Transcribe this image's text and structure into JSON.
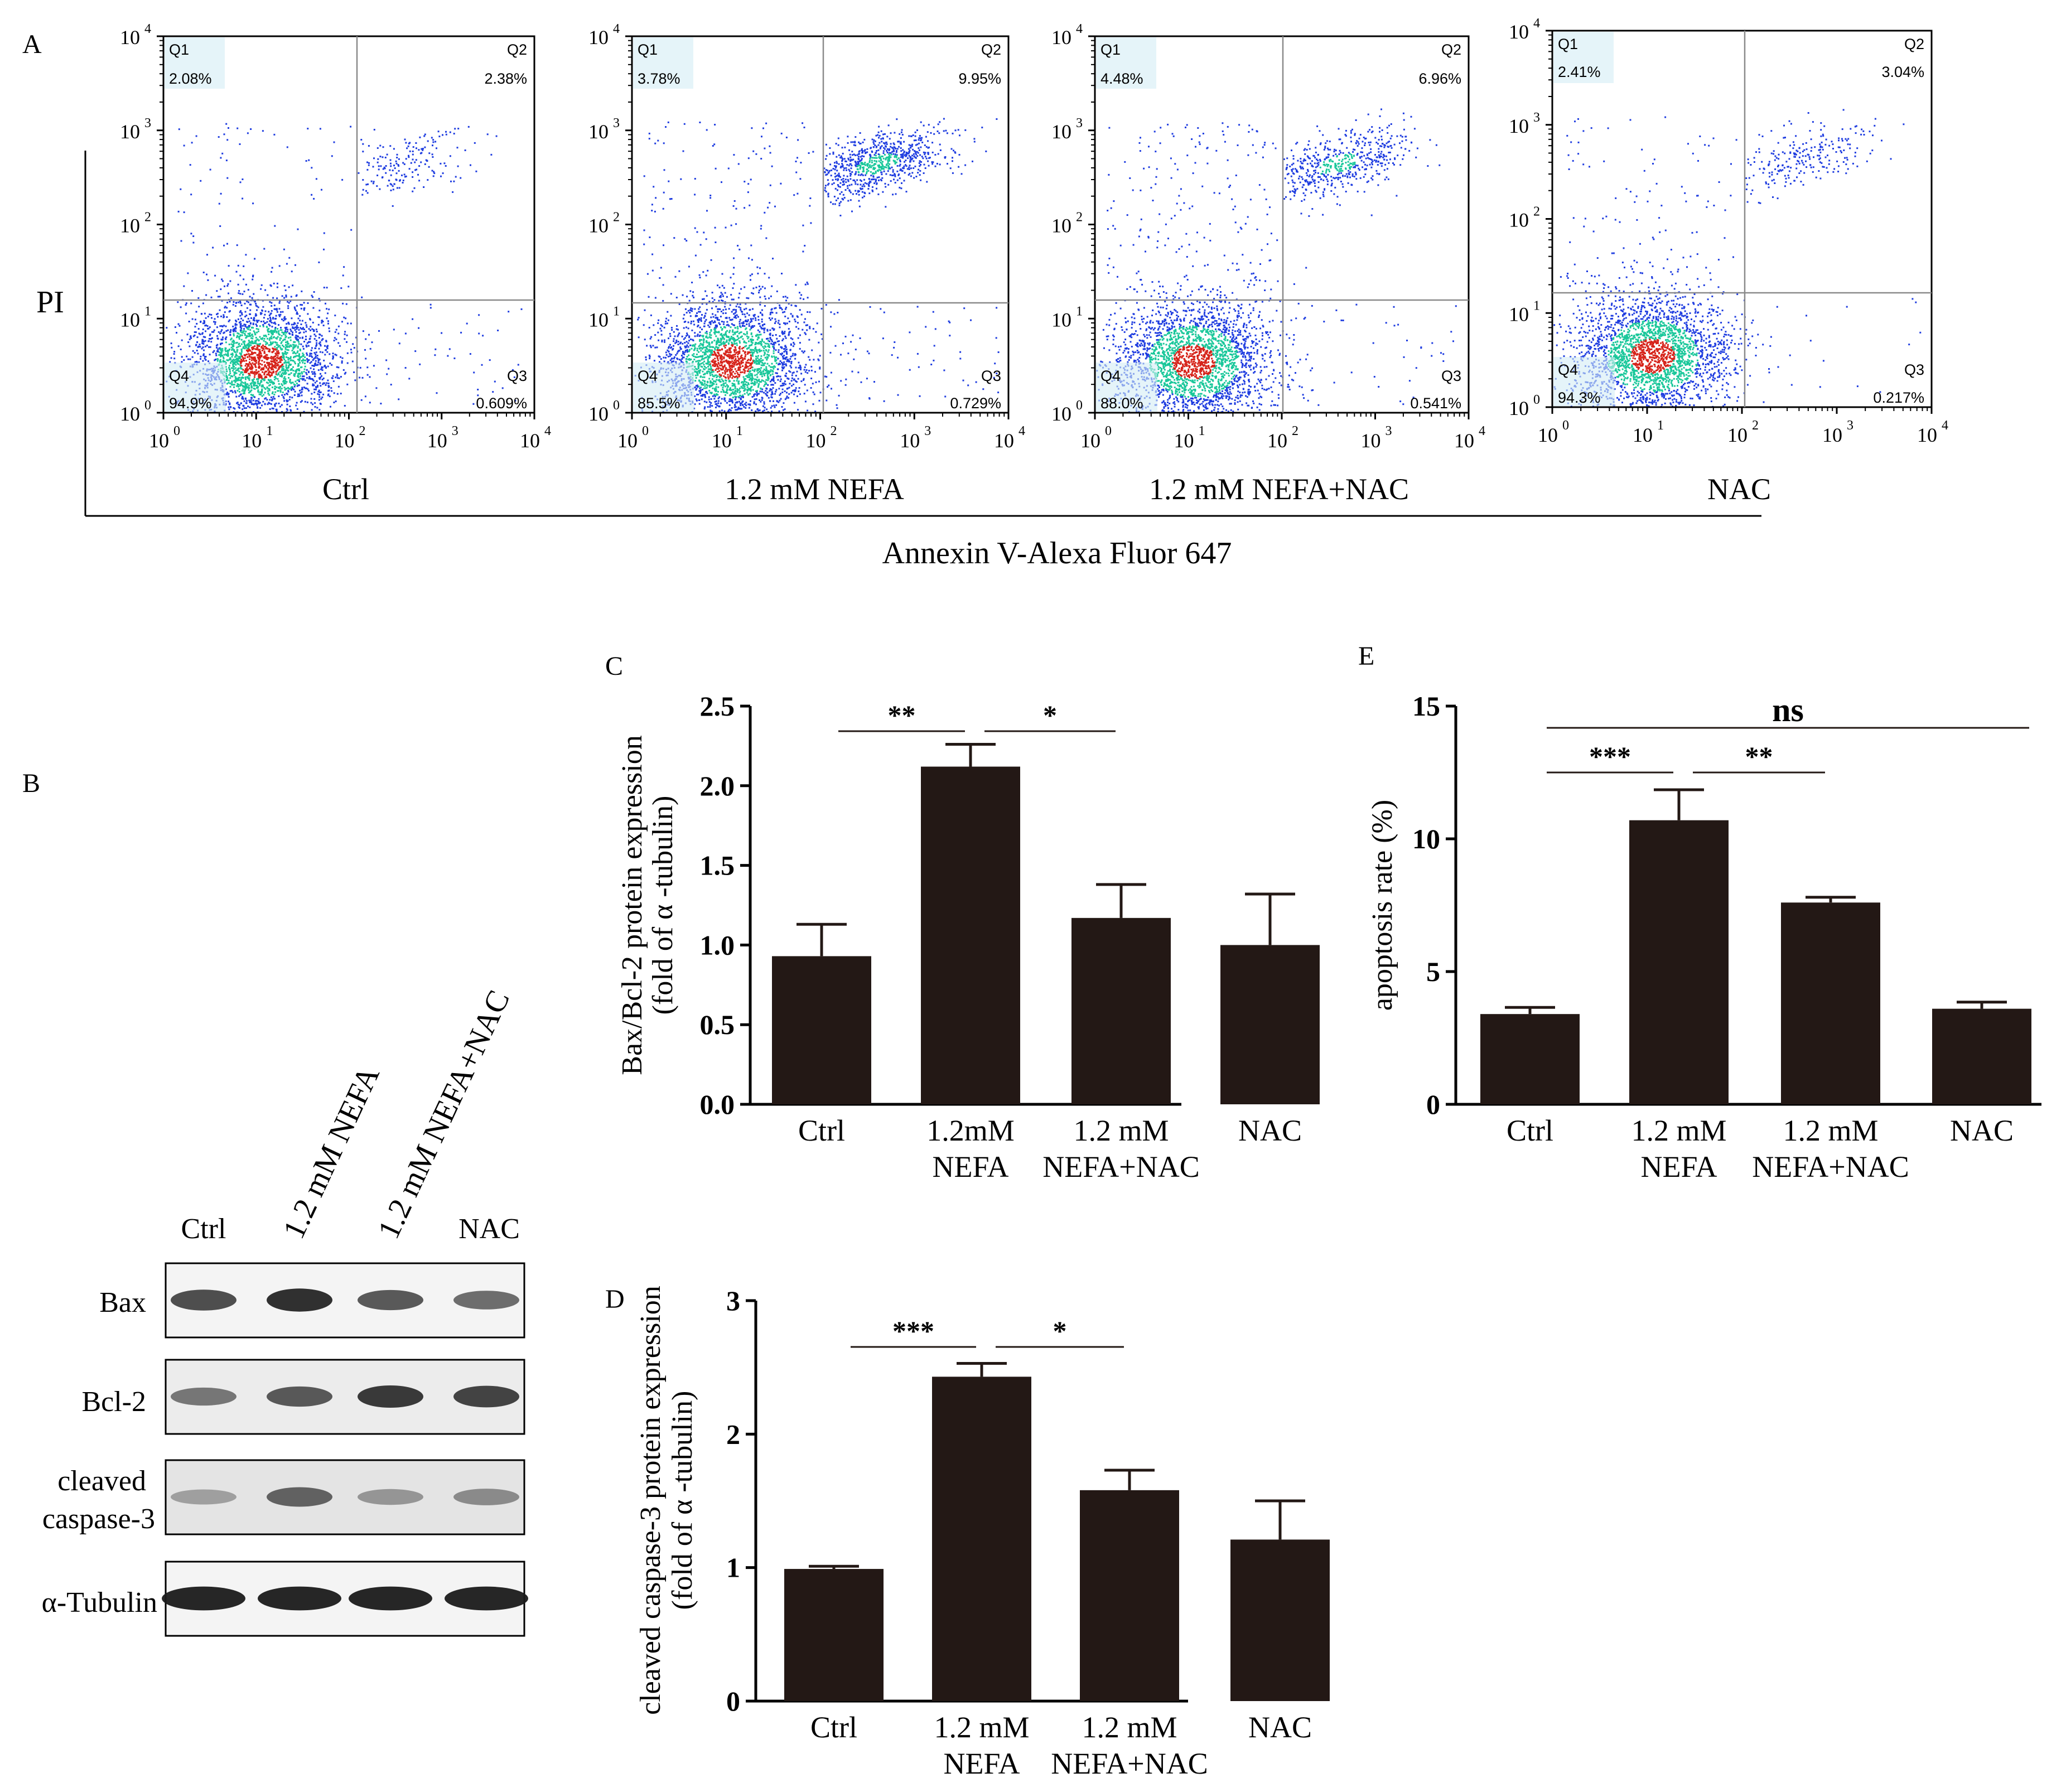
{
  "colors": {
    "bar": "#231815",
    "axis": "#000000",
    "density_low": "#1f3de0",
    "density_mid": "#19c79a",
    "density_high": "#d6231a",
    "gate_box": "#d4edf5",
    "gate_line": "#8a8a8a"
  },
  "panels": {
    "A": "A",
    "B": "B",
    "C": "C",
    "D": "D",
    "E": "E"
  },
  "flow": {
    "y_axis_label": "PI",
    "x_axis_label": "Annexin V-Alexa Fluor 647",
    "tick_base": "10",
    "tick_exponents": [
      "0",
      "1",
      "2",
      "3",
      "4"
    ],
    "plots": [
      {
        "name": "Ctrl",
        "q1_label": "Q1",
        "q1": "2.08%",
        "q2_label": "Q2",
        "q2": "2.38%",
        "q3_label": "Q3",
        "q3": "0.609%",
        "q4_label": "Q4",
        "q4": "94.9%"
      },
      {
        "name": "1.2 mM NEFA",
        "q1_label": "Q1",
        "q1": "3.78%",
        "q2_label": "Q2",
        "q2": "9.95%",
        "q3_label": "Q3",
        "q3": "0.729%",
        "q4_label": "Q4",
        "q4": "85.5%"
      },
      {
        "name": "1.2 mM NEFA+NAC",
        "q1_label": "Q1",
        "q1": "4.48%",
        "q2_label": "Q2",
        "q2": "6.96%",
        "q3_label": "Q3",
        "q3": "0.541%",
        "q4_label": "Q4",
        "q4": "88.0%"
      },
      {
        "name": "NAC",
        "q1_label": "Q1",
        "q1": "2.41%",
        "q2_label": "Q2",
        "q2": "3.04%",
        "q3_label": "Q3",
        "q3": "0.217%",
        "q4_label": "Q4",
        "q4": "94.3%"
      }
    ]
  },
  "western": {
    "lanes": [
      "Ctrl",
      "1.2 mM NEFA",
      "1.2 mM NEFA+NAC",
      "NAC"
    ],
    "blots": [
      {
        "label": "Bax",
        "intensity": [
          0.75,
          0.9,
          0.7,
          0.6
        ]
      },
      {
        "label": "Bcl-2",
        "intensity": [
          0.55,
          0.7,
          0.85,
          0.8
        ]
      },
      {
        "label_line1": "cleaved",
        "label_line2": "caspase-3",
        "intensity": [
          0.35,
          0.65,
          0.4,
          0.45
        ]
      },
      {
        "label": "α-Tubulin",
        "intensity": [
          0.95,
          0.95,
          0.95,
          0.95
        ]
      }
    ]
  },
  "chart_data": [
    {
      "panel": "C",
      "type": "bar",
      "ylabel_line1": "Bax/Bcl-2 protein expression",
      "ylabel_line2": "(fold of α -tubulin)",
      "ylim": [
        0,
        2.5
      ],
      "yticks": [
        "0.0",
        "0.5",
        "1.0",
        "1.5",
        "2.0",
        "2.5"
      ],
      "categories": [
        [
          "Ctrl"
        ],
        [
          "1.2mM",
          "NEFA"
        ],
        [
          "1.2 mM",
          "NEFA+NAC"
        ],
        [
          "NAC"
        ]
      ],
      "values": [
        0.93,
        2.12,
        1.17,
        1.0
      ],
      "errors": [
        0.2,
        0.14,
        0.21,
        0.32
      ],
      "significance": [
        {
          "from": 0,
          "to": 1,
          "label": "**"
        },
        {
          "from": 1,
          "to": 2,
          "label": "*"
        }
      ]
    },
    {
      "panel": "D",
      "type": "bar",
      "ylabel_line1": "cleaved caspase-3 protein expression",
      "ylabel_line2": "(fold of α -tubulin)",
      "ylim": [
        0,
        3
      ],
      "yticks": [
        "0",
        "1",
        "2",
        "3"
      ],
      "categories": [
        [
          "Ctrl"
        ],
        [
          "1.2 mM",
          "NEFA"
        ],
        [
          "1.2 mM",
          "NEFA+NAC"
        ],
        [
          "NAC"
        ]
      ],
      "values": [
        0.99,
        2.43,
        1.58,
        1.21
      ],
      "errors": [
        0.02,
        0.1,
        0.15,
        0.29
      ],
      "significance": [
        {
          "from": 0,
          "to": 1,
          "label": "***"
        },
        {
          "from": 1,
          "to": 2,
          "label": "*"
        }
      ]
    },
    {
      "panel": "E",
      "type": "bar",
      "ylabel_line1": "apoptosis rate (%)",
      "ylim": [
        0,
        15
      ],
      "yticks": [
        "0",
        "5",
        "10",
        "15"
      ],
      "categories": [
        [
          "Ctrl"
        ],
        [
          "1.2 mM",
          "NEFA"
        ],
        [
          "1.2 mM",
          "NEFA+NAC"
        ],
        [
          "NAC"
        ]
      ],
      "values": [
        3.4,
        10.7,
        7.6,
        3.6
      ],
      "errors": [
        0.25,
        1.15,
        0.2,
        0.25
      ],
      "significance": [
        {
          "from": 0,
          "to": 3,
          "label": "ns"
        },
        {
          "from": 0,
          "to": 1,
          "label": "***"
        },
        {
          "from": 1,
          "to": 2,
          "label": "**"
        }
      ]
    }
  ]
}
